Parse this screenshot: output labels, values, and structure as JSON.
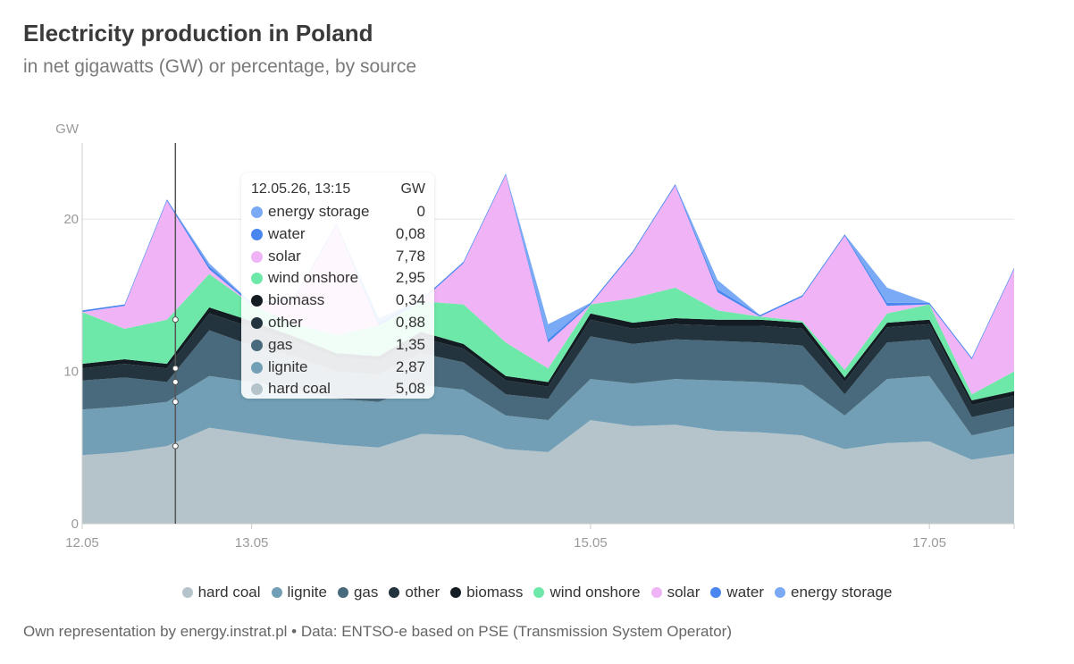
{
  "header": {
    "title": "Electricity production in Poland",
    "subtitle": "in net gigawatts (GW) or percentage, by source"
  },
  "tooltip": {
    "time": "12.05.26, 13:15",
    "unit": "GW",
    "rows": [
      {
        "name": "energy storage",
        "value": "0",
        "color": "#7aaaf5"
      },
      {
        "name": "water",
        "value": "0,08",
        "color": "#4a86f0"
      },
      {
        "name": "solar",
        "value": "7,78",
        "color": "#f0b4f6"
      },
      {
        "name": "wind onshore",
        "value": "2,95",
        "color": "#6ee8a8"
      },
      {
        "name": "biomass",
        "value": "0,34",
        "color": "#121c22"
      },
      {
        "name": "other",
        "value": "0,88",
        "color": "#23343f"
      },
      {
        "name": "gas",
        "value": "1,35",
        "color": "#486a7c"
      },
      {
        "name": "lignite",
        "value": "2,87",
        "color": "#729fb5"
      },
      {
        "name": "hard coal",
        "value": "5,08",
        "color": "#b5c3cb"
      }
    ]
  },
  "legend": {
    "items": [
      {
        "name": "hard coal",
        "color": "#b5c3cb"
      },
      {
        "name": "lignite",
        "color": "#729fb5"
      },
      {
        "name": "gas",
        "color": "#486a7c"
      },
      {
        "name": "other",
        "color": "#23343f"
      },
      {
        "name": "biomass",
        "color": "#121c22"
      },
      {
        "name": "wind onshore",
        "color": "#6ee8a8"
      },
      {
        "name": "solar",
        "color": "#f0b4f6"
      },
      {
        "name": "water",
        "color": "#4a86f0"
      },
      {
        "name": "energy storage",
        "color": "#7aaaf5"
      }
    ]
  },
  "footer": {
    "text": "Own representation by energy.instrat.pl • Data: ENTSO-e based on PSE (Transmission System Operator)"
  },
  "chart_data": {
    "type": "area",
    "stacked": true,
    "ylabel": "GW",
    "ylim": [
      0,
      25
    ],
    "yticks": [
      0,
      10,
      20
    ],
    "xlim": [
      0,
      5.5
    ],
    "xticks": [
      {
        "x": 0,
        "label": "12.05"
      },
      {
        "x": 1,
        "label": "13.05"
      },
      {
        "x": 3,
        "label": "15.05"
      },
      {
        "x": 5,
        "label": "17.05"
      }
    ],
    "crosshair_x": 0.55,
    "x": [
      0,
      0.25,
      0.5,
      0.75,
      1,
      1.25,
      1.5,
      1.75,
      2,
      2.25,
      2.5,
      2.75,
      3,
      3.25,
      3.5,
      3.75,
      4,
      4.25,
      4.5,
      4.75,
      5,
      5.25,
      5.5
    ],
    "series": [
      {
        "name": "hard coal",
        "color": "#b5c3cb",
        "values": [
          4.5,
          4.7,
          5.1,
          6.3,
          5.9,
          5.5,
          5.2,
          5.0,
          5.9,
          5.8,
          4.9,
          4.7,
          6.8,
          6.4,
          6.5,
          6.1,
          6.0,
          5.8,
          4.9,
          5.3,
          5.4,
          4.2,
          4.6
        ]
      },
      {
        "name": "lignite",
        "color": "#729fb5",
        "values": [
          3.0,
          3.0,
          2.9,
          3.4,
          3.4,
          3.3,
          3.0,
          3.0,
          3.2,
          3.0,
          2.2,
          2.1,
          2.7,
          2.8,
          3.0,
          3.3,
          3.3,
          3.3,
          2.2,
          4.2,
          4.3,
          1.6,
          1.8
        ]
      },
      {
        "name": "gas",
        "color": "#486a7c",
        "values": [
          1.9,
          1.9,
          1.3,
          3.0,
          2.4,
          2.2,
          1.8,
          1.8,
          2.1,
          1.8,
          1.4,
          1.4,
          2.8,
          2.6,
          2.6,
          2.6,
          2.6,
          2.6,
          1.4,
          2.4,
          2.4,
          1.2,
          1.2
        ]
      },
      {
        "name": "other",
        "color": "#23343f",
        "values": [
          0.8,
          0.9,
          0.9,
          1.1,
          1.2,
          1.0,
          0.9,
          0.9,
          1.0,
          0.9,
          0.9,
          0.8,
          1.1,
          1.0,
          1.0,
          1.0,
          1.1,
          1.1,
          0.8,
          1.0,
          1.0,
          0.8,
          0.8
        ]
      },
      {
        "name": "biomass",
        "color": "#121c22",
        "values": [
          0.3,
          0.3,
          0.3,
          0.4,
          0.4,
          0.3,
          0.3,
          0.3,
          0.4,
          0.3,
          0.3,
          0.3,
          0.4,
          0.4,
          0.4,
          0.4,
          0.4,
          0.4,
          0.3,
          0.3,
          0.3,
          0.3,
          0.3
        ]
      },
      {
        "name": "wind onshore",
        "color": "#6ee8a8",
        "values": [
          3.4,
          2.0,
          2.9,
          2.2,
          1.1,
          0.8,
          1.2,
          2.0,
          2.0,
          2.6,
          2.2,
          0.9,
          0.6,
          1.6,
          2.0,
          0.6,
          0.2,
          0.1,
          0.5,
          0.6,
          1.0,
          0.4,
          1.3
        ]
      },
      {
        "name": "solar",
        "color": "#f0b4f6",
        "values": [
          0,
          1.5,
          7.8,
          0.3,
          0,
          1.6,
          7.2,
          0,
          0,
          2.7,
          11.0,
          1.7,
          0,
          3.0,
          6.7,
          1.2,
          0,
          1.6,
          8.8,
          0.5,
          0,
          2.3,
          6.7
        ]
      },
      {
        "name": "water",
        "color": "#4a86f0",
        "values": [
          0.1,
          0.1,
          0.1,
          0.2,
          0.1,
          0.1,
          0.1,
          0.2,
          0.1,
          0.1,
          0.1,
          0.2,
          0.1,
          0.1,
          0.1,
          0.2,
          0.1,
          0.1,
          0.1,
          0.2,
          0.1,
          0.1,
          0.1
        ]
      },
      {
        "name": "energy storage",
        "color": "#7aaaf5",
        "values": [
          0,
          0,
          0,
          0.2,
          0,
          0,
          0,
          0.3,
          0,
          0,
          0,
          1.0,
          0,
          0,
          0,
          0.6,
          0,
          0,
          0,
          1.0,
          0,
          0,
          0
        ]
      }
    ]
  }
}
